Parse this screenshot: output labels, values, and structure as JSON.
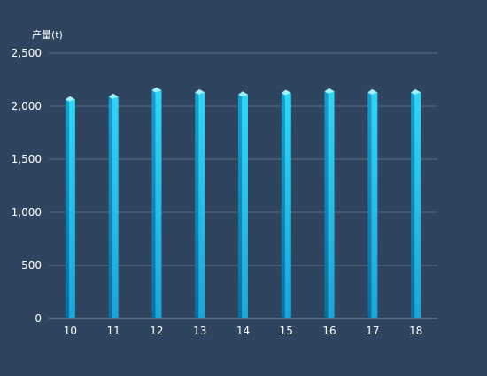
{
  "chart_data": {
    "type": "bar",
    "ylabel": "产量(t)",
    "categories": [
      "10",
      "11",
      "12",
      "13",
      "14",
      "15",
      "16",
      "17",
      "18"
    ],
    "values": [
      2065,
      2090,
      2150,
      2130,
      2110,
      2125,
      2140,
      2130,
      2130
    ],
    "ylim": [
      0,
      2500
    ],
    "yticks": [
      0,
      500,
      1000,
      1500,
      2000,
      2500
    ],
    "ytick_labels": [
      "0",
      "500",
      "1,000",
      "1,500",
      "2,000",
      "2,500"
    ],
    "grid": true,
    "colors": {
      "background": "#2f445e",
      "bar_front": "#22c4ec",
      "bar_side": "#0f86b9",
      "bar_top": "#9ff0ff",
      "grid": "#5b6e86",
      "text": "#ffffff"
    }
  }
}
